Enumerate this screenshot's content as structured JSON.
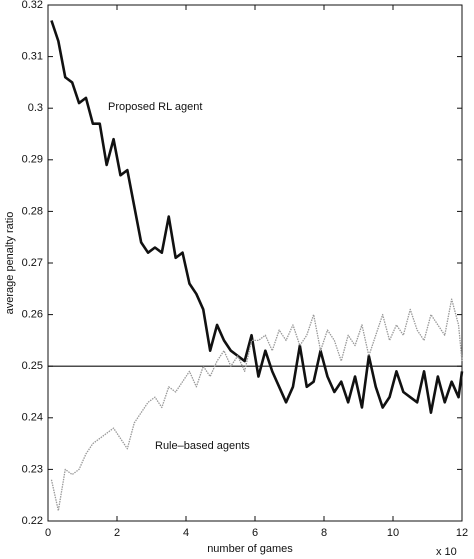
{
  "chart_data": {
    "type": "line",
    "xlabel": "number of games",
    "ylabel": "average penalty ratio",
    "x_multiplier": "x 10",
    "xlim": [
      0,
      12
    ],
    "ylim": [
      0.22,
      0.32
    ],
    "xticks": [
      0,
      2,
      4,
      6,
      8,
      10,
      12
    ],
    "yticks": [
      0.22,
      0.23,
      0.24,
      0.25,
      0.26,
      0.27,
      0.28,
      0.29,
      0.3,
      0.31,
      0.32
    ],
    "hline": 0.25,
    "x": [
      0.1,
      0.3,
      0.5,
      0.7,
      0.9,
      1.1,
      1.3,
      1.5,
      1.7,
      1.9,
      2.1,
      2.3,
      2.5,
      2.7,
      2.9,
      3.1,
      3.3,
      3.5,
      3.7,
      3.9,
      4.1,
      4.3,
      4.5,
      4.7,
      4.9,
      5.1,
      5.3,
      5.5,
      5.7,
      5.9,
      6.1,
      6.3,
      6.5,
      6.7,
      6.9,
      7.1,
      7.3,
      7.5,
      7.7,
      7.9,
      8.1,
      8.3,
      8.5,
      8.7,
      8.9,
      9.1,
      9.3,
      9.5,
      9.7,
      9.9,
      10.1,
      10.3,
      10.5,
      10.7,
      10.9,
      11.1,
      11.3,
      11.5,
      11.7,
      11.9,
      12.0
    ],
    "series": [
      {
        "name": "Proposed RL agent",
        "color": "#111111",
        "style": "solid",
        "values": [
          0.317,
          0.313,
          0.306,
          0.305,
          0.301,
          0.302,
          0.297,
          0.297,
          0.289,
          0.294,
          0.287,
          0.288,
          0.281,
          0.274,
          0.272,
          0.273,
          0.272,
          0.279,
          0.271,
          0.272,
          0.266,
          0.264,
          0.261,
          0.253,
          0.258,
          0.255,
          0.253,
          0.252,
          0.251,
          0.256,
          0.248,
          0.253,
          0.249,
          0.246,
          0.243,
          0.246,
          0.254,
          0.246,
          0.247,
          0.253,
          0.248,
          0.245,
          0.247,
          0.243,
          0.248,
          0.242,
          0.252,
          0.246,
          0.242,
          0.244,
          0.249,
          0.245,
          0.244,
          0.243,
          0.249,
          0.241,
          0.248,
          0.243,
          0.247,
          0.244,
          0.249
        ]
      },
      {
        "name": "Rule–based agents",
        "color": "#999999",
        "style": "dotted",
        "values": [
          0.228,
          0.222,
          0.23,
          0.229,
          0.23,
          0.233,
          0.235,
          0.236,
          0.237,
          0.238,
          0.236,
          0.234,
          0.239,
          0.241,
          0.243,
          0.244,
          0.242,
          0.246,
          0.245,
          0.247,
          0.249,
          0.246,
          0.25,
          0.248,
          0.251,
          0.253,
          0.25,
          0.252,
          0.249,
          0.255,
          0.255,
          0.256,
          0.253,
          0.257,
          0.255,
          0.258,
          0.254,
          0.256,
          0.26,
          0.253,
          0.257,
          0.255,
          0.251,
          0.256,
          0.254,
          0.258,
          0.252,
          0.256,
          0.26,
          0.255,
          0.258,
          0.256,
          0.261,
          0.257,
          0.255,
          0.26,
          0.258,
          0.256,
          0.263,
          0.258,
          0.251
        ]
      }
    ]
  }
}
